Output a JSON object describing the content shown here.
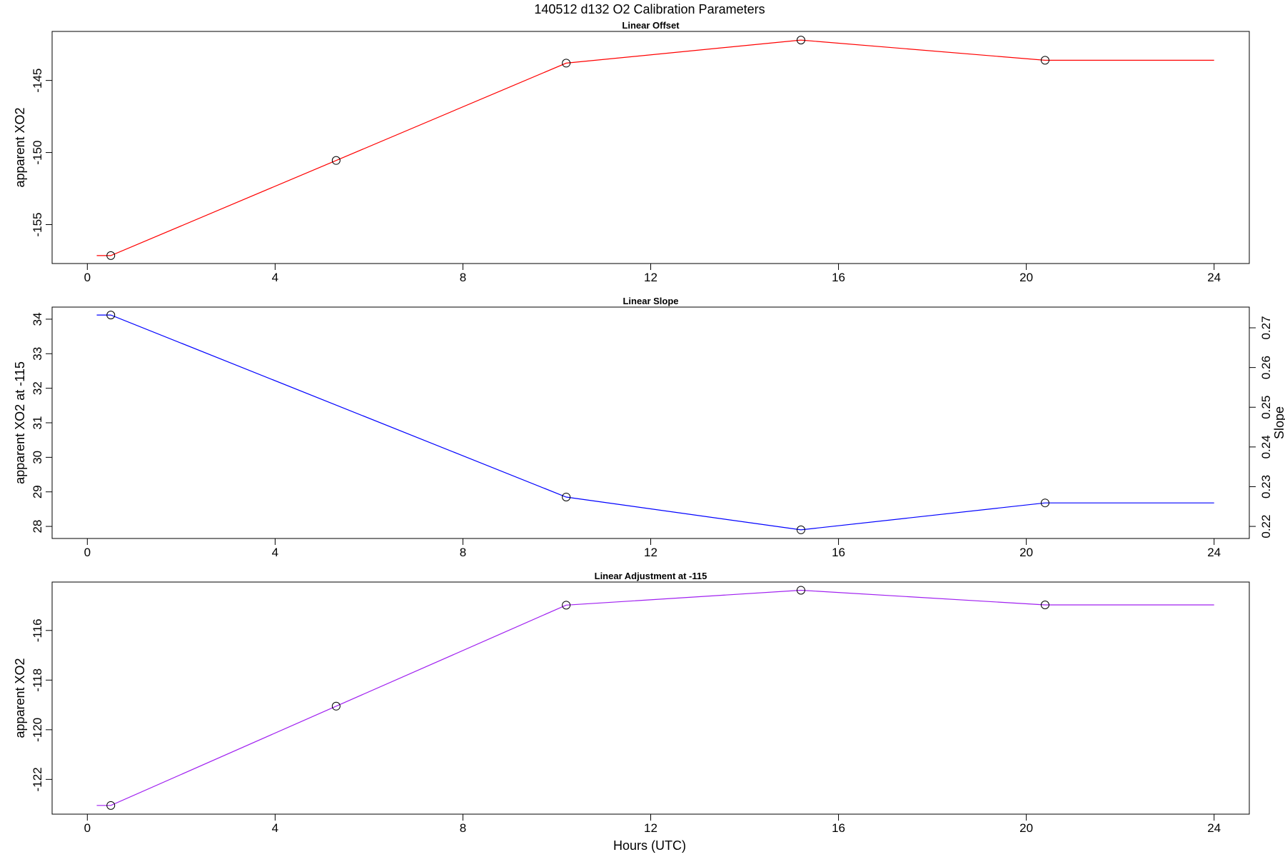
{
  "figure": {
    "title": "140512   d132   O2 Calibration Parameters",
    "xlabel": "Hours (UTC)"
  },
  "chart_data": [
    {
      "type": "line",
      "title": "Linear Offset",
      "xlabel": "",
      "ylabel": "apparent XO2",
      "xlim": [
        -0.75,
        24.75
      ],
      "ylim": [
        -157.7,
        -141.6
      ],
      "x_ticks": [
        0,
        4,
        8,
        12,
        16,
        20,
        24
      ],
      "y_ticks": [
        -145,
        -150,
        -155
      ],
      "line_color": "#ff0000",
      "line_x": [
        0.2,
        0.5,
        5.3,
        10.2,
        15.2,
        20.4,
        24.0
      ],
      "line_y": [
        -157.15,
        -157.15,
        -150.55,
        -143.8,
        -142.2,
        -143.6,
        -143.6
      ],
      "points": {
        "x": [
          0.5,
          5.3,
          10.2,
          15.2,
          20.4
        ],
        "y": [
          -157.15,
          -150.55,
          -143.8,
          -142.2,
          -143.6
        ]
      }
    },
    {
      "type": "line",
      "title": "Linear Slope",
      "xlabel": "",
      "ylabel": "apparent XO2 at -115",
      "ylabel_right": "Slope",
      "xlim": [
        -0.75,
        24.75
      ],
      "ylim": [
        27.65,
        34.35
      ],
      "x_ticks": [
        0,
        4,
        8,
        12,
        16,
        20,
        24
      ],
      "y_ticks": [
        28,
        29,
        30,
        31,
        32,
        33,
        34
      ],
      "right_axis": {
        "ticks": [
          "0.22",
          "0.23",
          "0.24",
          "0.25",
          "0.26",
          "0.27"
        ],
        "y_at_left": [
          28.0,
          29.15,
          30.3,
          31.45,
          32.6,
          33.75
        ]
      },
      "line_color": "#0000ff",
      "line_x": [
        0.2,
        0.5,
        10.2,
        15.2,
        20.4,
        24.0
      ],
      "line_y": [
        34.12,
        34.12,
        28.85,
        27.9,
        28.68,
        28.68
      ],
      "points": {
        "x": [
          0.5,
          10.2,
          15.2,
          20.4
        ],
        "y": [
          34.12,
          28.85,
          27.9,
          28.68
        ]
      }
    },
    {
      "type": "line",
      "title": "Linear Adjustment at -115",
      "xlabel": "Hours (UTC)",
      "ylabel": "apparent XO2",
      "xlim": [
        -0.75,
        24.75
      ],
      "ylim": [
        -123.4,
        -114.05
      ],
      "x_ticks": [
        0,
        4,
        8,
        12,
        16,
        20,
        24
      ],
      "y_ticks": [
        -116,
        -118,
        -120,
        -122
      ],
      "line_color": "#a020f0",
      "line_x": [
        0.2,
        0.5,
        5.3,
        10.2,
        15.2,
        20.4,
        24.0
      ],
      "line_y": [
        -123.05,
        -123.05,
        -119.05,
        -114.98,
        -114.38,
        -114.97,
        -114.97
      ],
      "points": {
        "x": [
          0.5,
          5.3,
          10.2,
          15.2,
          20.4
        ],
        "y": [
          -123.05,
          -119.05,
          -114.98,
          -114.38,
          -114.97
        ]
      }
    }
  ]
}
